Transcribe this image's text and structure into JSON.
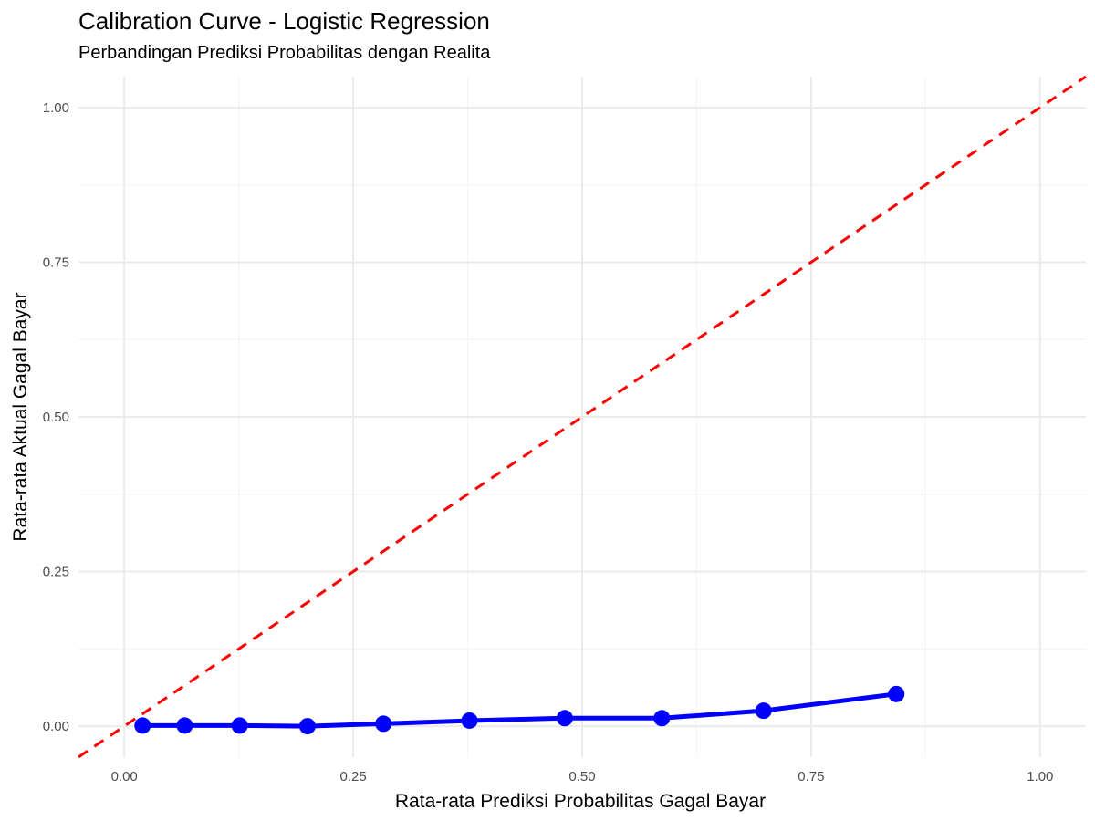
{
  "title": "Calibration Curve - Logistic Regression",
  "subtitle": "Perbandingan Prediksi Probabilitas dengan Realita",
  "colors": {
    "background": "#ffffff",
    "grid_major": "#ebebeb",
    "grid_minor": "#f5f5f5",
    "calibration_line": "#0000ff",
    "reference_line": "#ff0000",
    "tick_text": "#4d4d4d"
  },
  "chart_data": {
    "type": "line",
    "xlabel": "Rata-rata Prediksi Probabilitas Gagal Bayar",
    "ylabel": "Rata-rata Aktual Gagal Bayar",
    "xlim": [
      -0.05,
      1.05
    ],
    "ylim": [
      -0.05,
      1.05
    ],
    "x_ticks": [
      0,
      0.25,
      0.5,
      0.75,
      1
    ],
    "x_tick_labels": [
      "0.00",
      "0.25",
      "0.50",
      "0.75",
      "1.00"
    ],
    "y_ticks": [
      0,
      0.25,
      0.5,
      0.75,
      1
    ],
    "y_tick_labels": [
      "0.00",
      "0.25",
      "0.50",
      "0.75",
      "1.00"
    ],
    "grid": true,
    "legend": "none",
    "series": [
      {
        "x": [
          0.02,
          0.066,
          0.126,
          0.2,
          0.283,
          0.377,
          0.481,
          0.587,
          0.698,
          0.843
        ],
        "y": [
          0.001,
          0.001,
          0.001,
          0.0,
          0.004,
          0.009,
          0.013,
          0.013,
          0.025,
          0.052
        ],
        "color": "#0000ff",
        "style": "solid",
        "markers": true
      }
    ],
    "reference_line": {
      "slope": 1,
      "intercept": 0,
      "color": "#ff0000",
      "style": "dashed"
    }
  }
}
